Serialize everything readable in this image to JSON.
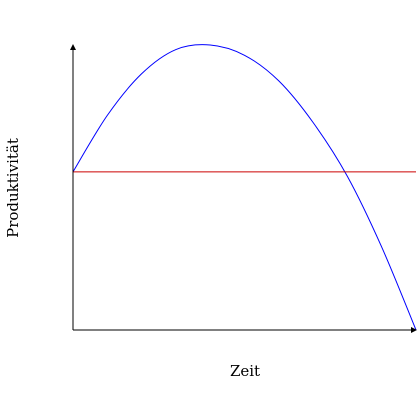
{
  "chart_data": {
    "type": "line",
    "title": "",
    "xlabel": "Zeit",
    "ylabel": "Produktivität",
    "xlim": [
      0,
      1
    ],
    "ylim": [
      0,
      1
    ],
    "grid": false,
    "legend": "none",
    "ticks": "none",
    "series": [
      {
        "color": "#0000ff",
        "style": "curve",
        "x": [
          0,
          0.1,
          0.2,
          0.3,
          0.4,
          0.5,
          0.6,
          0.7,
          0.8,
          0.9,
          1.0
        ],
        "y": [
          0.555,
          0.753,
          0.899,
          0.984,
          1.0,
          0.964,
          0.874,
          0.728,
          0.539,
          0.291,
          0.0
        ]
      },
      {
        "color": "#cc0000",
        "style": "line",
        "x": [
          0,
          1
        ],
        "y": [
          0.555,
          0.555
        ]
      }
    ]
  }
}
